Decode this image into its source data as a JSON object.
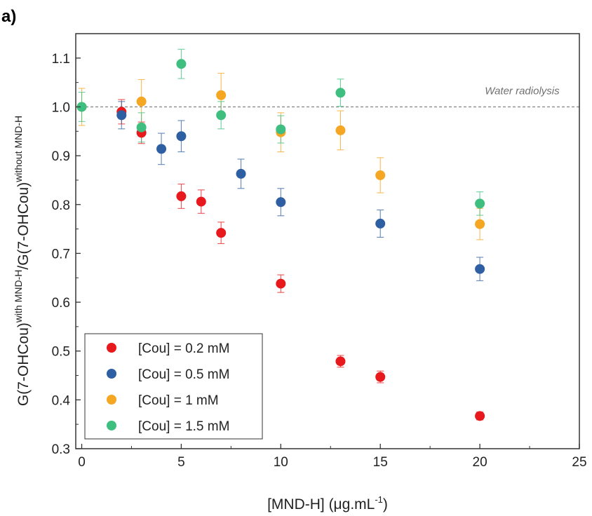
{
  "panel_label": "a)",
  "chart_data": {
    "type": "scatter",
    "title": "",
    "xlabel": "[MND-H] (μg.mL",
    "xlabel_sup": "-1",
    "xlabel_close": ")",
    "ylabel_parts": {
      "base1": "G(7-OHCou)",
      "sup1": "with MND-H",
      "sep": "/G(7-OHCou)",
      "sup2": "without MND-H"
    },
    "xlim": [
      -0.3,
      25
    ],
    "ylim": [
      0.3,
      1.15
    ],
    "xticks": [
      0,
      5,
      10,
      15,
      20,
      25
    ],
    "yticks": [
      0.3,
      0.4,
      0.5,
      0.6,
      0.7,
      0.8,
      0.9,
      1.0,
      1.1
    ],
    "ytick_labels": [
      "0.3",
      "0.4",
      "0.5",
      "0.6",
      "0.7",
      "0.8",
      "0.9",
      "1.0",
      "1.1"
    ],
    "reference_line": {
      "y": 1.0,
      "label": "Water radiolysis",
      "style": "dashed",
      "color": "#8a8a8a"
    },
    "legend_position": "bottom-left",
    "series": [
      {
        "name": "[Cou] = 0.2 mM",
        "color": "#e8191c",
        "x": [
          2,
          3,
          5,
          6,
          7,
          10,
          13,
          15,
          20
        ],
        "y": [
          0.99,
          0.947,
          0.817,
          0.806,
          0.742,
          0.638,
          0.479,
          0.447,
          0.367
        ],
        "err": [
          0.025,
          0.022,
          0.025,
          0.024,
          0.022,
          0.018,
          0.012,
          0.012,
          0.008
        ]
      },
      {
        "name": "[Cou] = 0.5 mM",
        "color": "#2e5fa3",
        "x": [
          2,
          4,
          5,
          8,
          10,
          15,
          20
        ],
        "y": [
          0.983,
          0.914,
          0.94,
          0.863,
          0.805,
          0.761,
          0.668
        ],
        "err": [
          0.028,
          0.032,
          0.032,
          0.03,
          0.028,
          0.028,
          0.024
        ]
      },
      {
        "name": "[Cou] = 1 mM",
        "color": "#f5a623",
        "x": [
          0,
          3,
          7,
          10,
          13,
          15,
          20
        ],
        "y": [
          1.0,
          1.011,
          1.024,
          0.948,
          0.952,
          0.86,
          0.76
        ],
        "err": [
          0.038,
          0.045,
          0.045,
          0.04,
          0.04,
          0.036,
          0.032
        ]
      },
      {
        "name": "[Cou] = 1.5 mM",
        "color": "#3fbf7f",
        "x": [
          0,
          3,
          5,
          7,
          10,
          13,
          20
        ],
        "y": [
          1.0,
          0.958,
          1.088,
          0.983,
          0.954,
          1.029,
          0.802
        ],
        "err": [
          0.03,
          0.03,
          0.03,
          0.028,
          0.028,
          0.028,
          0.024
        ]
      }
    ]
  }
}
